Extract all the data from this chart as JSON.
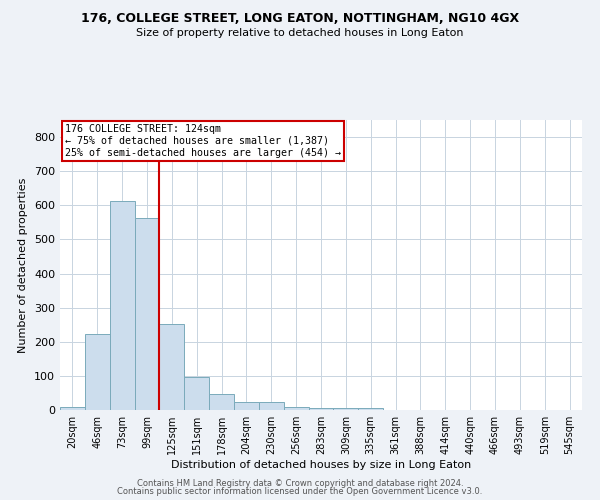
{
  "title_line1": "176, COLLEGE STREET, LONG EATON, NOTTINGHAM, NG10 4GX",
  "title_line2": "Size of property relative to detached houses in Long Eaton",
  "xlabel": "Distribution of detached houses by size in Long Eaton",
  "ylabel": "Number of detached properties",
  "bar_labels": [
    "20sqm",
    "46sqm",
    "73sqm",
    "99sqm",
    "125sqm",
    "151sqm",
    "178sqm",
    "204sqm",
    "230sqm",
    "256sqm",
    "283sqm",
    "309sqm",
    "335sqm",
    "361sqm",
    "388sqm",
    "414sqm",
    "440sqm",
    "466sqm",
    "493sqm",
    "519sqm",
    "545sqm"
  ],
  "bar_values": [
    10,
    224,
    614,
    563,
    252,
    97,
    48,
    22,
    22,
    9,
    5,
    5,
    7,
    0,
    0,
    0,
    0,
    0,
    0,
    0,
    0
  ],
  "bar_color": "#ccdded",
  "bar_edge_color": "#7aaabb",
  "vline_x": 3.5,
  "annotation_line1": "176 COLLEGE STREET: 124sqm",
  "annotation_line2": "← 75% of detached houses are smaller (1,387)",
  "annotation_line3": "25% of semi-detached houses are larger (454) →",
  "annotation_box_color": "#ffffff",
  "annotation_box_edge_color": "#cc0000",
  "vline_color": "#cc0000",
  "ylim": [
    0,
    850
  ],
  "yticks": [
    0,
    100,
    200,
    300,
    400,
    500,
    600,
    700,
    800
  ],
  "footer_line1": "Contains HM Land Registry data © Crown copyright and database right 2024.",
  "footer_line2": "Contains public sector information licensed under the Open Government Licence v3.0.",
  "background_color": "#eef2f7",
  "plot_bg_color": "#ffffff",
  "grid_color": "#c8d4e0"
}
